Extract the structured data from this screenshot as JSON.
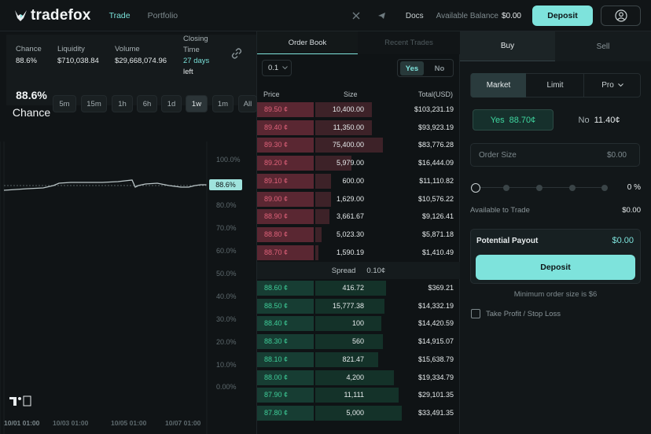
{
  "nav": {
    "brand": "tradefox",
    "links": [
      "Trade",
      "Portfolio"
    ],
    "docs": "Docs",
    "balance_label": "Available Balance",
    "balance_value": "$0.00",
    "deposit": "Deposit"
  },
  "stats": {
    "chance_label": "Chance",
    "chance_value": "88.6%",
    "liquidity_label": "Liquidity",
    "liquidity_value": "$710,038.84",
    "volume_label": "Volume",
    "volume_value": "$29,668,074.96",
    "closing_label_1": "Closing",
    "closing_label_2": "Time",
    "closing_value": "27 days",
    "closing_suffix": "left"
  },
  "chart": {
    "big_value": "88.6%",
    "big_label": "Chance",
    "timeframes": [
      "5m",
      "15m",
      "1h",
      "6h",
      "1d",
      "1w",
      "1m",
      "All"
    ],
    "active_timeframe": "1w",
    "y_ticks": [
      "100.0%",
      "80.0%",
      "70.0%",
      "60.0%",
      "50.0%",
      "40.0%",
      "30.0%",
      "20.0%",
      "10.0%",
      "0.00%"
    ],
    "current_label": "88.6%",
    "x_ticks": [
      "10/01 01:00",
      "10/03 01:00",
      "10/05 01:00",
      "10/07 01:00"
    ]
  },
  "book": {
    "tabs": [
      "Order Book",
      "Recent Trades"
    ],
    "tick_size": "0.1",
    "yes": "Yes",
    "no": "No",
    "headers": [
      "Price",
      "Size",
      "Total(USD)"
    ],
    "spread_label": "Spread",
    "spread_value": "0.10¢",
    "asks": [
      {
        "price": "89.50 ¢",
        "size": "10,400.00",
        "total": "$103,231.19"
      },
      {
        "price": "89.40 ¢",
        "size": "11,350.00",
        "total": "$93,923.19"
      },
      {
        "price": "89.30 ¢",
        "size": "75,400.00",
        "total": "$83,776.28"
      },
      {
        "price": "89.20 ¢",
        "size": "5,979.00",
        "total": "$16,444.09"
      },
      {
        "price": "89.10 ¢",
        "size": "600.00",
        "total": "$11,110.82"
      },
      {
        "price": "89.00 ¢",
        "size": "1,629.00",
        "total": "$10,576.22"
      },
      {
        "price": "88.90 ¢",
        "size": "3,661.67",
        "total": "$9,126.41"
      },
      {
        "price": "88.80 ¢",
        "size": "5,023.30",
        "total": "$5,871.18"
      },
      {
        "price": "88.70 ¢",
        "size": "1,590.19",
        "total": "$1,410.49"
      }
    ],
    "bids": [
      {
        "price": "88.60 ¢",
        "size": "416.72",
        "total": "$369.21"
      },
      {
        "price": "88.50 ¢",
        "size": "15,777.38",
        "total": "$14,332.19"
      },
      {
        "price": "88.40 ¢",
        "size": "100",
        "total": "$14,420.59"
      },
      {
        "price": "88.30 ¢",
        "size": "560",
        "total": "$14,915.07"
      },
      {
        "price": "88.10 ¢",
        "size": "821.47",
        "total": "$15,638.79"
      },
      {
        "price": "88.00 ¢",
        "size": "4,200",
        "total": "$19,334.79"
      },
      {
        "price": "87.90 ¢",
        "size": "11,111",
        "total": "$29,101.35"
      },
      {
        "price": "87.80 ¢",
        "size": "5,000",
        "total": "$33,491.35"
      }
    ]
  },
  "trade": {
    "buy": "Buy",
    "sell": "Sell",
    "market": "Market",
    "limit": "Limit",
    "pro": "Pro",
    "yes_label": "Yes",
    "yes_price": "88.70¢",
    "no_label": "No",
    "no_price": "11.40¢",
    "order_size_label": "Order Size",
    "order_size_value": "$0.00",
    "slider_value": "0 %",
    "available_label": "Available to Trade",
    "available_value": "$0.00",
    "payout_label": "Potential Payout",
    "payout_value": "$0.00",
    "deposit": "Deposit",
    "minimum_note": "Minimum order size is $6",
    "tpsl_label": "Take Profit / Stop Loss"
  },
  "colors": {
    "accent": "#7ee3dc",
    "ask": "#e0627a",
    "bid": "#3fcf9a"
  }
}
